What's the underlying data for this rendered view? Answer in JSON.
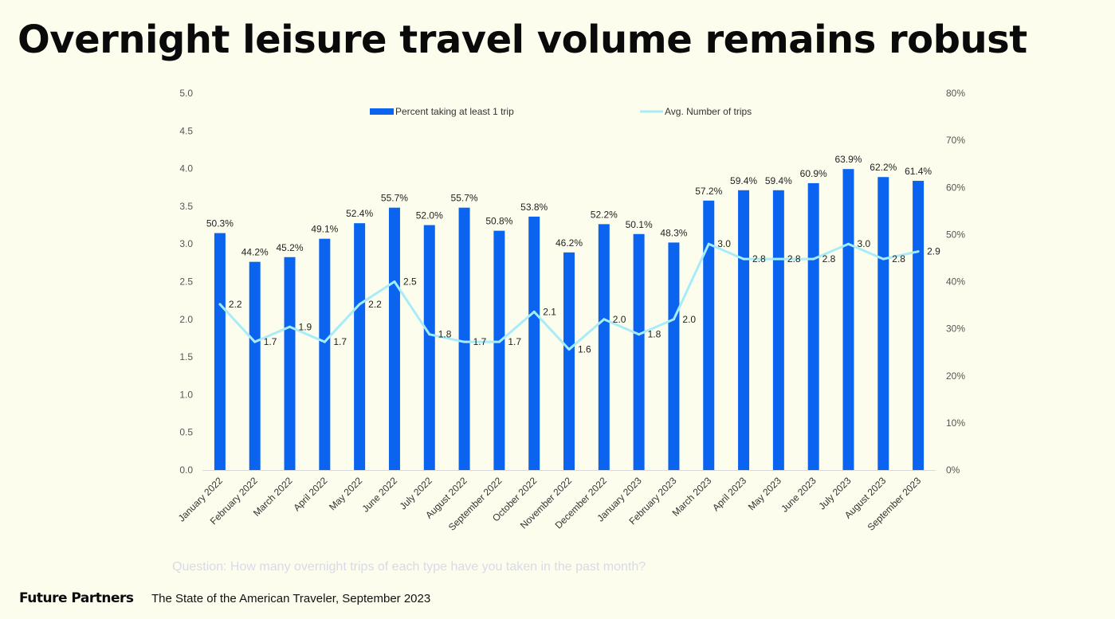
{
  "title": "Overnight leisure travel volume remains robust",
  "footer": {
    "question": "Question: How many overnight trips of each type have you taken in the past month?",
    "brand": "Future Partners",
    "report": "The State of the American Traveler, September 2023"
  },
  "colors": {
    "bar": "#0a64f0",
    "line": "#a8ecf8",
    "background": "#fdfdee"
  },
  "chart_data": {
    "type": "bar",
    "categories": [
      "January 2022",
      "February 2022",
      "March 2022",
      "April 2022",
      "May 2022",
      "June 2022",
      "July 2022",
      "August 2022",
      "September 2022",
      "October 2022",
      "November 2022",
      "December 2022",
      "January 2023",
      "February 2023",
      "March 2023",
      "April 2023",
      "May 2023",
      "June 2023",
      "July 2023",
      "August 2023",
      "September 2023"
    ],
    "series": [
      {
        "name": "Percent taking at least 1 trip",
        "type": "bar",
        "axis": "right",
        "values": [
          50.3,
          44.2,
          45.2,
          49.1,
          52.4,
          55.7,
          52.0,
          55.7,
          50.8,
          53.8,
          46.2,
          52.2,
          50.1,
          48.3,
          57.2,
          59.4,
          59.4,
          60.9,
          63.9,
          62.2,
          61.4
        ],
        "labels": [
          "50.3%",
          "44.2%",
          "45.2%",
          "49.1%",
          "52.4%",
          "55.7%",
          "52.0%",
          "55.7%",
          "50.8%",
          "53.8%",
          "46.2%",
          "52.2%",
          "50.1%",
          "48.3%",
          "57.2%",
          "59.4%",
          "59.4%",
          "60.9%",
          "63.9%",
          "62.2%",
          "61.4%"
        ]
      },
      {
        "name": "Avg. Number of trips",
        "type": "line",
        "axis": "left",
        "values": [
          2.2,
          1.7,
          1.9,
          1.7,
          2.2,
          2.5,
          1.8,
          1.7,
          1.7,
          2.1,
          1.6,
          2.0,
          1.8,
          2.0,
          3.0,
          2.8,
          2.8,
          2.8,
          3.0,
          2.8,
          2.9
        ],
        "labels": [
          "2.2",
          "1.7",
          "1.9",
          "1.7",
          "2.2",
          "2.5",
          "1.8",
          "1.7",
          "1.7",
          "2.1",
          "1.6",
          "2.0",
          "1.8",
          "2.0",
          "3.0",
          "2.8",
          "2.8",
          "2.8",
          "3.0",
          "2.8",
          "2.9"
        ]
      }
    ],
    "left_axis": {
      "ylim": [
        0,
        5
      ],
      "ticks": [
        "0.0",
        "0.5",
        "1.0",
        "1.5",
        "2.0",
        "2.5",
        "3.0",
        "3.5",
        "4.0",
        "4.5",
        "5.0"
      ]
    },
    "right_axis": {
      "ylim": [
        0,
        80
      ],
      "ticks": [
        "0%",
        "10%",
        "20%",
        "30%",
        "40%",
        "50%",
        "60%",
        "70%",
        "80%"
      ]
    },
    "legend_position": "top-center",
    "grid": false
  }
}
